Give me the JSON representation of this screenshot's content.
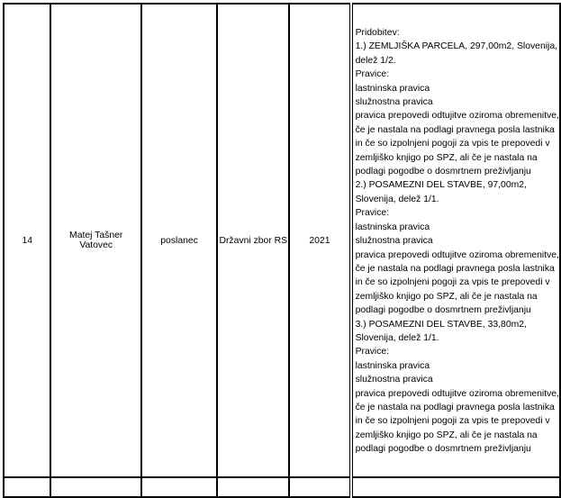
{
  "row": {
    "number": "14",
    "name": "Matej Tašner Vatovec",
    "function": "poslanec",
    "organ": "Državni zbor RS",
    "year": "2021",
    "description_lines": [
      "Pridobitev:",
      "1.) ZEMLJIŠKA PARCELA, 297,00m2, Slovenija,",
      "delež 1/2.",
      "Pravice:",
      "lastninska pravica",
      "služnostna pravica",
      "pravica prepovedi odtujitve oziroma obremenitve,",
      "če je nastala na podlagi pravnega posla lastnika",
      "in če so izpolnjeni pogoji za vpis te prepovedi v",
      "zemljiško knjigo po SPZ, ali če je nastala na",
      "podlagi pogodbe o dosmrtnem preživljanju",
      "2.) POSAMEZNI DEL STAVBE, 97,00m2,",
      "Slovenija, delež 1/1.",
      "Pravice:",
      "lastninska pravica",
      "služnostna pravica",
      "pravica prepovedi odtujitve oziroma obremenitve,",
      "če je nastala na podlagi pravnega posla lastnika",
      "in če so izpolnjeni pogoji za vpis te prepovedi v",
      "zemljiško knjigo po SPZ, ali če je nastala na",
      "podlagi pogodbe o dosmrtnem preživljanju",
      "3.) POSAMEZNI DEL STAVBE, 33,80m2,",
      "Slovenija, delež 1/1.",
      "Pravice:",
      "lastninska pravica",
      "služnostna pravica",
      "pravica prepovedi odtujitve oziroma obremenitve,",
      "če je nastala na podlagi pravnega posla lastnika",
      "in če so izpolnjeni pogoji za vpis te prepovedi v",
      "zemljiško knjigo po SPZ, ali če je nastala na",
      "podlagi pogodbe o dosmrtnem preživljanju"
    ]
  }
}
